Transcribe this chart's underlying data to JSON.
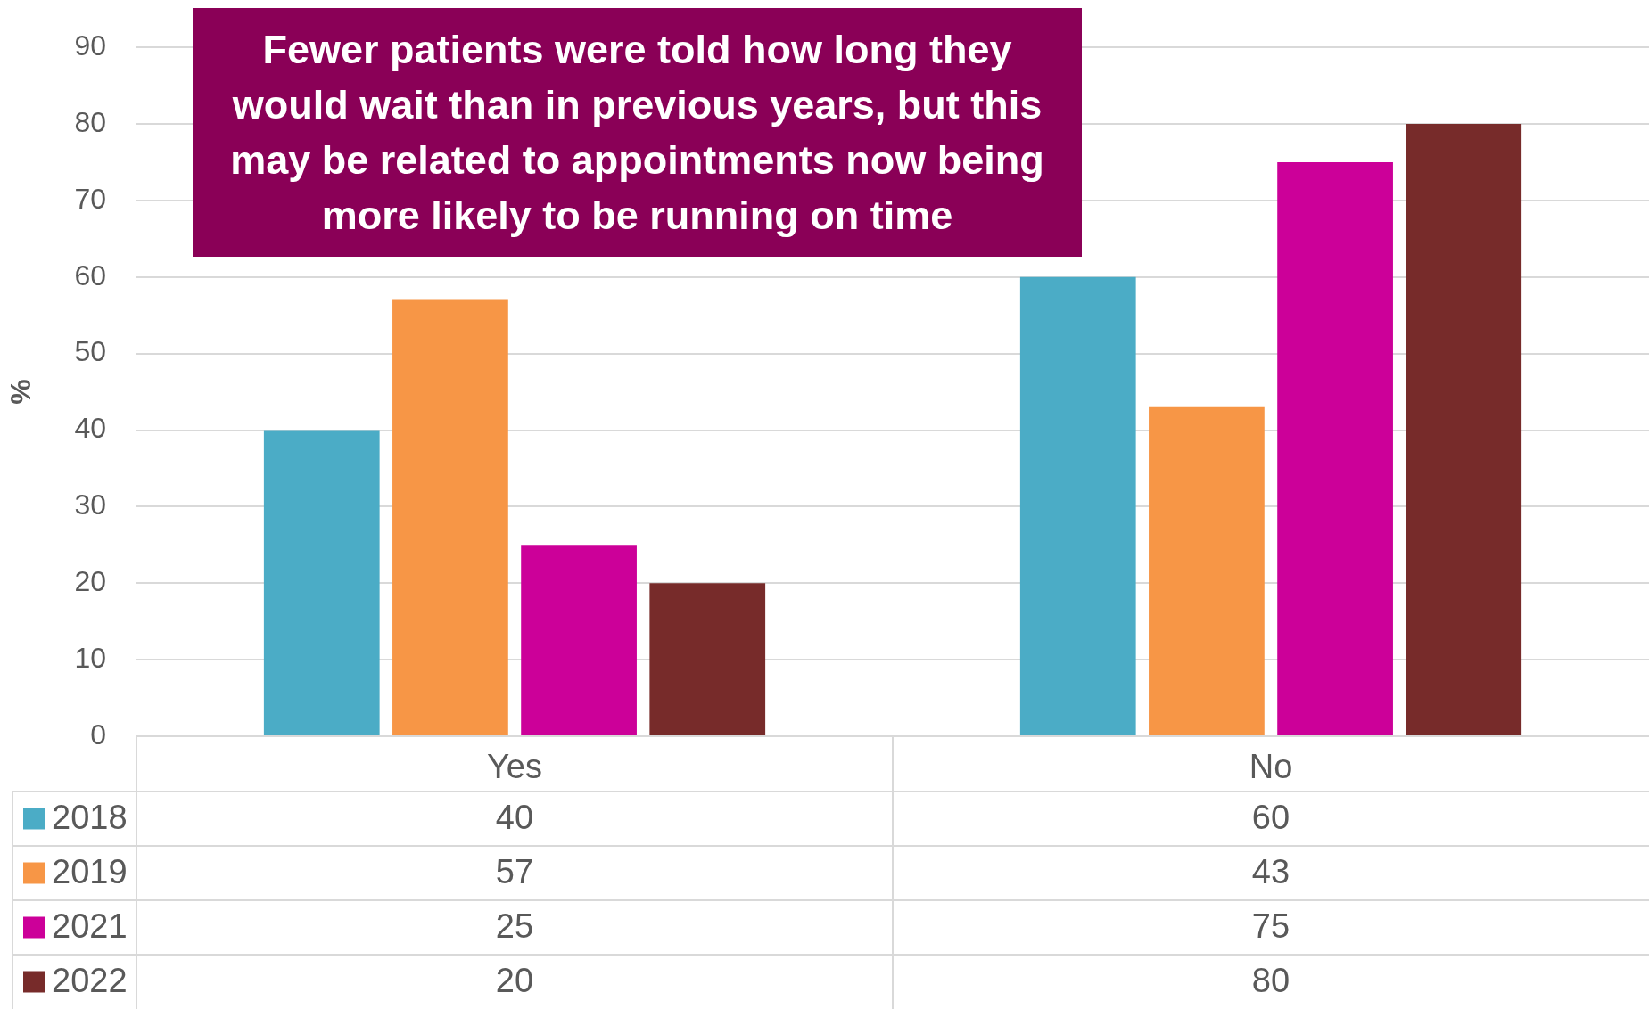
{
  "chart_data": {
    "type": "bar",
    "title": "Fewer patients were told how long they would wait than in previous years, but this may be related to appointments now being more likely to be running on time",
    "ylabel": "%",
    "categories": [
      "Yes",
      "No"
    ],
    "series": [
      {
        "name": "2018",
        "color": "#4bacc6",
        "values": [
          40,
          60
        ]
      },
      {
        "name": "2019",
        "color": "#f79646",
        "values": [
          57,
          43
        ]
      },
      {
        "name": "2021",
        "color": "#cc0099",
        "values": [
          25,
          75
        ]
      },
      {
        "name": "2022",
        "color": "#772b2a",
        "values": [
          20,
          80
        ]
      }
    ],
    "ylim": [
      0,
      90
    ],
    "yticks": [
      0,
      10,
      20,
      30,
      40,
      50,
      60,
      70,
      80,
      90
    ],
    "grid": "y",
    "legend": "bottom",
    "data_labels": true
  }
}
